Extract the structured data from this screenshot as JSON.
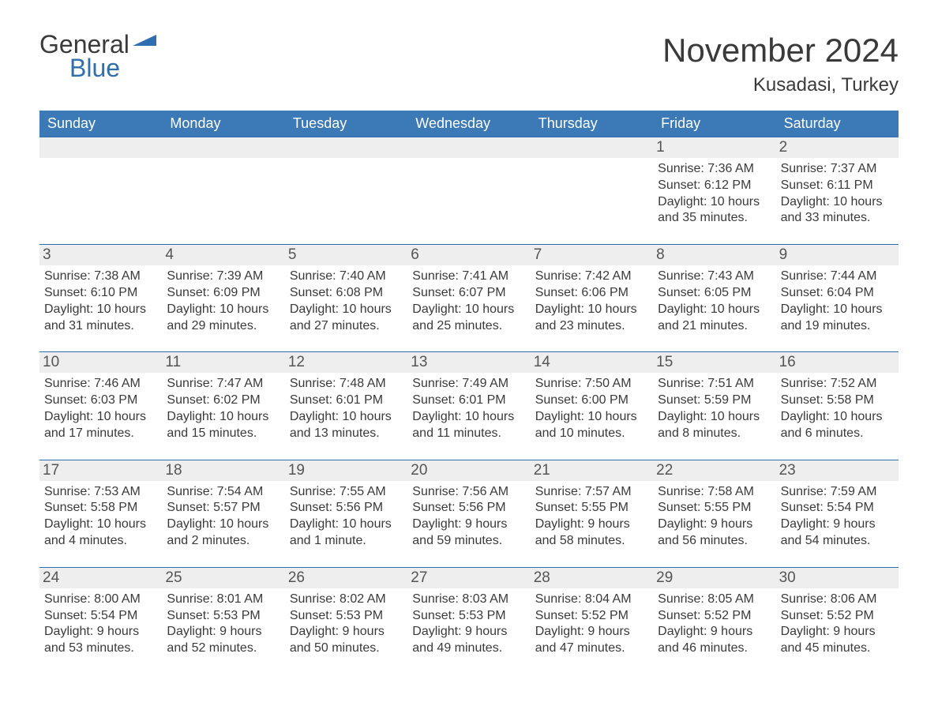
{
  "logo": {
    "word1": "General",
    "word2": "Blue",
    "shape_color": "#2f6fb0",
    "text_color_general": "#3a3a3a",
    "text_color_blue": "#2f6fb0"
  },
  "header": {
    "month_title": "November 2024",
    "location": "Kusadasi, Turkey"
  },
  "calendar": {
    "header_bg": "#3b79b7",
    "header_text_color": "#ffffff",
    "daynum_bg": "#eeeeee",
    "daynum_border_top": "#2f6fb0",
    "body_text_color": "#3a3a3a",
    "weekdays": [
      "Sunday",
      "Monday",
      "Tuesday",
      "Wednesday",
      "Thursday",
      "Friday",
      "Saturday"
    ],
    "weeks": [
      [
        {
          "day": "",
          "sunrise": "",
          "sunset": "",
          "daylight": ""
        },
        {
          "day": "",
          "sunrise": "",
          "sunset": "",
          "daylight": ""
        },
        {
          "day": "",
          "sunrise": "",
          "sunset": "",
          "daylight": ""
        },
        {
          "day": "",
          "sunrise": "",
          "sunset": "",
          "daylight": ""
        },
        {
          "day": "",
          "sunrise": "",
          "sunset": "",
          "daylight": ""
        },
        {
          "day": "1",
          "sunrise": "Sunrise: 7:36 AM",
          "sunset": "Sunset: 6:12 PM",
          "daylight": "Daylight: 10 hours and 35 minutes."
        },
        {
          "day": "2",
          "sunrise": "Sunrise: 7:37 AM",
          "sunset": "Sunset: 6:11 PM",
          "daylight": "Daylight: 10 hours and 33 minutes."
        }
      ],
      [
        {
          "day": "3",
          "sunrise": "Sunrise: 7:38 AM",
          "sunset": "Sunset: 6:10 PM",
          "daylight": "Daylight: 10 hours and 31 minutes."
        },
        {
          "day": "4",
          "sunrise": "Sunrise: 7:39 AM",
          "sunset": "Sunset: 6:09 PM",
          "daylight": "Daylight: 10 hours and 29 minutes."
        },
        {
          "day": "5",
          "sunrise": "Sunrise: 7:40 AM",
          "sunset": "Sunset: 6:08 PM",
          "daylight": "Daylight: 10 hours and 27 minutes."
        },
        {
          "day": "6",
          "sunrise": "Sunrise: 7:41 AM",
          "sunset": "Sunset: 6:07 PM",
          "daylight": "Daylight: 10 hours and 25 minutes."
        },
        {
          "day": "7",
          "sunrise": "Sunrise: 7:42 AM",
          "sunset": "Sunset: 6:06 PM",
          "daylight": "Daylight: 10 hours and 23 minutes."
        },
        {
          "day": "8",
          "sunrise": "Sunrise: 7:43 AM",
          "sunset": "Sunset: 6:05 PM",
          "daylight": "Daylight: 10 hours and 21 minutes."
        },
        {
          "day": "9",
          "sunrise": "Sunrise: 7:44 AM",
          "sunset": "Sunset: 6:04 PM",
          "daylight": "Daylight: 10 hours and 19 minutes."
        }
      ],
      [
        {
          "day": "10",
          "sunrise": "Sunrise: 7:46 AM",
          "sunset": "Sunset: 6:03 PM",
          "daylight": "Daylight: 10 hours and 17 minutes."
        },
        {
          "day": "11",
          "sunrise": "Sunrise: 7:47 AM",
          "sunset": "Sunset: 6:02 PM",
          "daylight": "Daylight: 10 hours and 15 minutes."
        },
        {
          "day": "12",
          "sunrise": "Sunrise: 7:48 AM",
          "sunset": "Sunset: 6:01 PM",
          "daylight": "Daylight: 10 hours and 13 minutes."
        },
        {
          "day": "13",
          "sunrise": "Sunrise: 7:49 AM",
          "sunset": "Sunset: 6:01 PM",
          "daylight": "Daylight: 10 hours and 11 minutes."
        },
        {
          "day": "14",
          "sunrise": "Sunrise: 7:50 AM",
          "sunset": "Sunset: 6:00 PM",
          "daylight": "Daylight: 10 hours and 10 minutes."
        },
        {
          "day": "15",
          "sunrise": "Sunrise: 7:51 AM",
          "sunset": "Sunset: 5:59 PM",
          "daylight": "Daylight: 10 hours and 8 minutes."
        },
        {
          "day": "16",
          "sunrise": "Sunrise: 7:52 AM",
          "sunset": "Sunset: 5:58 PM",
          "daylight": "Daylight: 10 hours and 6 minutes."
        }
      ],
      [
        {
          "day": "17",
          "sunrise": "Sunrise: 7:53 AM",
          "sunset": "Sunset: 5:58 PM",
          "daylight": "Daylight: 10 hours and 4 minutes."
        },
        {
          "day": "18",
          "sunrise": "Sunrise: 7:54 AM",
          "sunset": "Sunset: 5:57 PM",
          "daylight": "Daylight: 10 hours and 2 minutes."
        },
        {
          "day": "19",
          "sunrise": "Sunrise: 7:55 AM",
          "sunset": "Sunset: 5:56 PM",
          "daylight": "Daylight: 10 hours and 1 minute."
        },
        {
          "day": "20",
          "sunrise": "Sunrise: 7:56 AM",
          "sunset": "Sunset: 5:56 PM",
          "daylight": "Daylight: 9 hours and 59 minutes."
        },
        {
          "day": "21",
          "sunrise": "Sunrise: 7:57 AM",
          "sunset": "Sunset: 5:55 PM",
          "daylight": "Daylight: 9 hours and 58 minutes."
        },
        {
          "day": "22",
          "sunrise": "Sunrise: 7:58 AM",
          "sunset": "Sunset: 5:55 PM",
          "daylight": "Daylight: 9 hours and 56 minutes."
        },
        {
          "day": "23",
          "sunrise": "Sunrise: 7:59 AM",
          "sunset": "Sunset: 5:54 PM",
          "daylight": "Daylight: 9 hours and 54 minutes."
        }
      ],
      [
        {
          "day": "24",
          "sunrise": "Sunrise: 8:00 AM",
          "sunset": "Sunset: 5:54 PM",
          "daylight": "Daylight: 9 hours and 53 minutes."
        },
        {
          "day": "25",
          "sunrise": "Sunrise: 8:01 AM",
          "sunset": "Sunset: 5:53 PM",
          "daylight": "Daylight: 9 hours and 52 minutes."
        },
        {
          "day": "26",
          "sunrise": "Sunrise: 8:02 AM",
          "sunset": "Sunset: 5:53 PM",
          "daylight": "Daylight: 9 hours and 50 minutes."
        },
        {
          "day": "27",
          "sunrise": "Sunrise: 8:03 AM",
          "sunset": "Sunset: 5:53 PM",
          "daylight": "Daylight: 9 hours and 49 minutes."
        },
        {
          "day": "28",
          "sunrise": "Sunrise: 8:04 AM",
          "sunset": "Sunset: 5:52 PM",
          "daylight": "Daylight: 9 hours and 47 minutes."
        },
        {
          "day": "29",
          "sunrise": "Sunrise: 8:05 AM",
          "sunset": "Sunset: 5:52 PM",
          "daylight": "Daylight: 9 hours and 46 minutes."
        },
        {
          "day": "30",
          "sunrise": "Sunrise: 8:06 AM",
          "sunset": "Sunset: 5:52 PM",
          "daylight": "Daylight: 9 hours and 45 minutes."
        }
      ]
    ]
  }
}
